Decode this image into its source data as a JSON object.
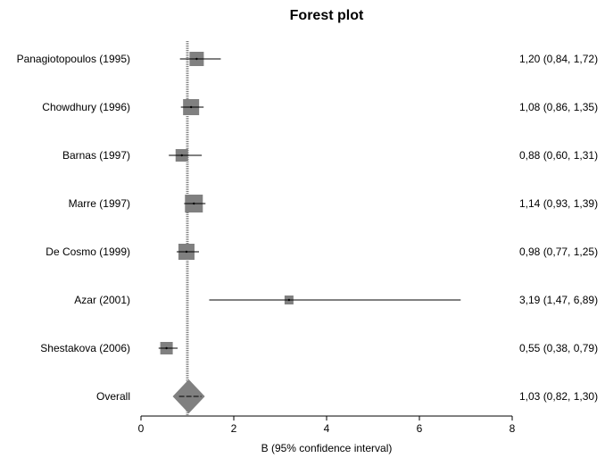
{
  "chart_data": {
    "type": "forest",
    "title": "Forest plot",
    "xlabel": "B (95% confidence interval)",
    "xlim": [
      0,
      8
    ],
    "xticks": [
      0,
      2,
      4,
      6,
      8
    ],
    "reference_line": 1,
    "studies": [
      {
        "label": "Panagiotopoulos (1995)",
        "estimate": 1.2,
        "lower": 0.84,
        "upper": 1.72,
        "ci_text": "1,20 (0,84, 1,72)"
      },
      {
        "label": "Chowdhury (1996)",
        "estimate": 1.08,
        "lower": 0.86,
        "upper": 1.35,
        "ci_text": "1,08 (0,86, 1,35)"
      },
      {
        "label": "Barnas (1997)",
        "estimate": 0.88,
        "lower": 0.6,
        "upper": 1.31,
        "ci_text": "0,88 (0,60, 1,31)"
      },
      {
        "label": "Marre (1997)",
        "estimate": 1.14,
        "lower": 0.93,
        "upper": 1.39,
        "ci_text": "1,14 (0,93, 1,39)"
      },
      {
        "label": "De Cosmo (1999)",
        "estimate": 0.98,
        "lower": 0.77,
        "upper": 1.25,
        "ci_text": "0,98 (0,77, 1,25)"
      },
      {
        "label": "Azar (2001)",
        "estimate": 3.19,
        "lower": 1.47,
        "upper": 6.89,
        "ci_text": "3,19 (1,47, 6,89)"
      },
      {
        "label": "Shestakova (2006)",
        "estimate": 0.55,
        "lower": 0.38,
        "upper": 0.79,
        "ci_text": "0,55 (0,38, 0,79)"
      }
    ],
    "overall": {
      "label": "Overall",
      "estimate": 1.03,
      "lower": 0.82,
      "upper": 1.3,
      "ci_text": "1,03 (0,82, 1,30)"
    },
    "colors": {
      "box": "#808080",
      "line": "#000000",
      "reference": "#808080"
    }
  }
}
